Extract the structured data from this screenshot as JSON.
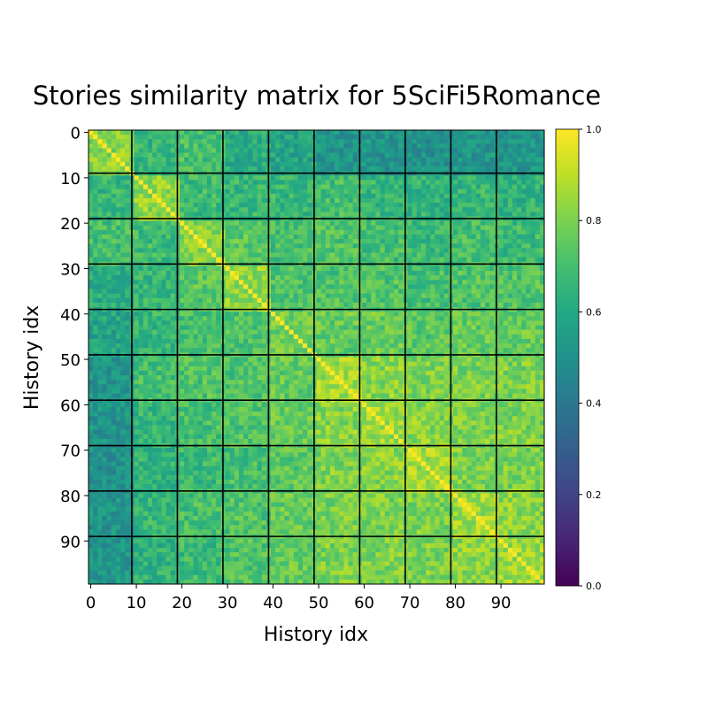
{
  "chart_data": {
    "type": "heatmap",
    "title": "Stories similarity matrix for 5SciFi5Romance",
    "xlabel": "History idx",
    "ylabel": "History idx",
    "rows": 100,
    "cols": 100,
    "x_ticks": [
      "0",
      "10",
      "20",
      "30",
      "40",
      "50",
      "60",
      "70",
      "80",
      "90"
    ],
    "y_ticks": [
      "0",
      "10",
      "20",
      "30",
      "40",
      "50",
      "60",
      "70",
      "80",
      "90"
    ],
    "x_tick_values": [
      0,
      10,
      20,
      30,
      40,
      50,
      60,
      70,
      80,
      90
    ],
    "y_tick_values": [
      0,
      10,
      20,
      30,
      40,
      50,
      60,
      70,
      80,
      90
    ],
    "block_size": 10,
    "group_boundaries": [
      10,
      20,
      30,
      40,
      50,
      60,
      70,
      80,
      90
    ],
    "vmin": 0.0,
    "vmax": 1.0,
    "colormap": "viridis",
    "colorbar_ticks": [
      "0.0",
      "0.2",
      "0.4",
      "0.6",
      "0.8",
      "1.0"
    ],
    "colorbar_tick_values": [
      0.0,
      0.2,
      0.4,
      0.6,
      0.8,
      1.0
    ],
    "diagonal_value": 1.0,
    "block_mean_similarity": [
      [
        0.82,
        0.66,
        0.7,
        0.62,
        0.58,
        0.52,
        0.52,
        0.5,
        0.52,
        0.52
      ],
      [
        0.66,
        0.84,
        0.68,
        0.66,
        0.66,
        0.7,
        0.66,
        0.64,
        0.66,
        0.64
      ],
      [
        0.7,
        0.68,
        0.82,
        0.74,
        0.7,
        0.72,
        0.7,
        0.68,
        0.7,
        0.68
      ],
      [
        0.62,
        0.66,
        0.74,
        0.84,
        0.72,
        0.72,
        0.72,
        0.7,
        0.72,
        0.72
      ],
      [
        0.58,
        0.66,
        0.7,
        0.72,
        0.78,
        0.76,
        0.76,
        0.74,
        0.76,
        0.76
      ],
      [
        0.52,
        0.7,
        0.72,
        0.72,
        0.76,
        0.86,
        0.82,
        0.8,
        0.8,
        0.8
      ],
      [
        0.52,
        0.66,
        0.7,
        0.72,
        0.76,
        0.82,
        0.86,
        0.82,
        0.8,
        0.8
      ],
      [
        0.5,
        0.64,
        0.68,
        0.7,
        0.74,
        0.8,
        0.82,
        0.86,
        0.8,
        0.8
      ],
      [
        0.52,
        0.66,
        0.7,
        0.72,
        0.76,
        0.8,
        0.8,
        0.8,
        0.86,
        0.82
      ],
      [
        0.52,
        0.64,
        0.68,
        0.72,
        0.76,
        0.8,
        0.8,
        0.8,
        0.82,
        0.86
      ]
    ],
    "grid": false
  }
}
